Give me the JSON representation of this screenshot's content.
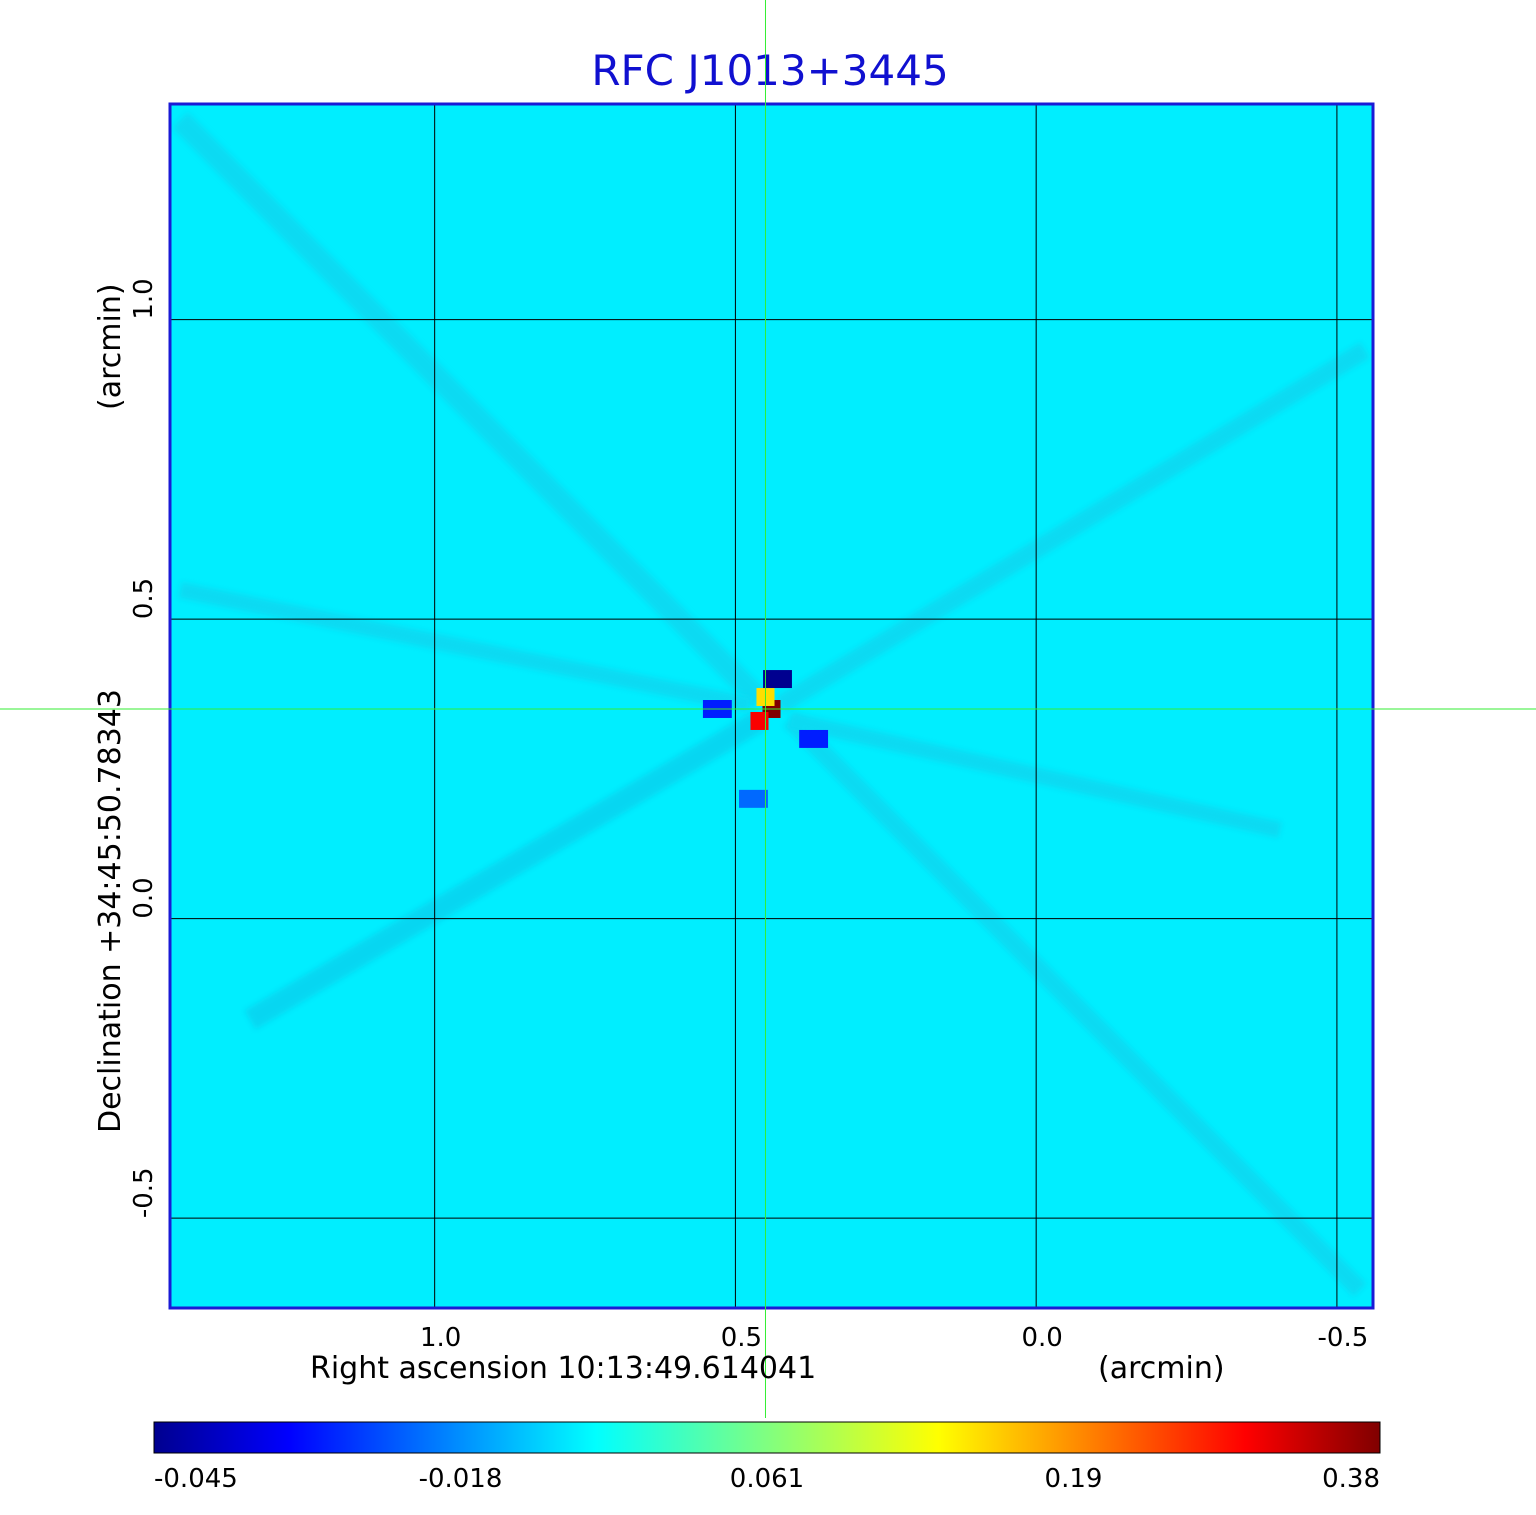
{
  "chart_data": {
    "type": "heatmap",
    "title": "RFC J1013+3445",
    "xlabel": "Right ascension  10:13:49.614041",
    "xunit": "(arcmin)",
    "ylabel": "Declination  +34:45:50.78343",
    "yunit": "(arcmin)",
    "xlim": [
      1.44,
      -0.56
    ],
    "ylim": [
      -0.65,
      1.36
    ],
    "x_ticks": [
      1.0,
      0.5,
      0.0,
      -0.5
    ],
    "x_tick_labels": [
      "1.0",
      "0.5",
      "0.0",
      "-0.5"
    ],
    "y_ticks": [
      1.0,
      0.5,
      0.0,
      -0.5
    ],
    "y_tick_labels": [
      "1.0",
      "0.5",
      "0.0",
      "-0.5"
    ],
    "grid": true,
    "crosshair": {
      "x": 0.45,
      "y": 0.35
    },
    "background_level": 0.0,
    "colorbar": {
      "colormap": "jet",
      "ticks": [
        -0.045,
        -0.018,
        0.061,
        0.19,
        0.38
      ],
      "tick_labels": [
        "-0.045",
        "-0.018",
        "0.061",
        "0.19",
        "0.38"
      ]
    },
    "features": [
      {
        "kind": "peak",
        "x": 0.44,
        "y": 0.35,
        "value": 0.38
      },
      {
        "kind": "peak",
        "x": 0.46,
        "y": 0.33,
        "value": 0.3
      },
      {
        "kind": "peak",
        "x": 0.45,
        "y": 0.37,
        "value": 0.15
      },
      {
        "kind": "negative",
        "x": 0.43,
        "y": 0.4,
        "value": -0.045
      },
      {
        "kind": "negative",
        "x": 0.37,
        "y": 0.3,
        "value": -0.03
      },
      {
        "kind": "negative",
        "x": 0.53,
        "y": 0.35,
        "value": -0.03
      },
      {
        "kind": "negative",
        "x": 0.47,
        "y": 0.2,
        "value": -0.022
      }
    ]
  },
  "colors": {
    "title": "#1010d0",
    "frame": "#1a1ad6",
    "grid": "#000000",
    "crosshair": "#33ee33",
    "background": "#00eeff"
  }
}
